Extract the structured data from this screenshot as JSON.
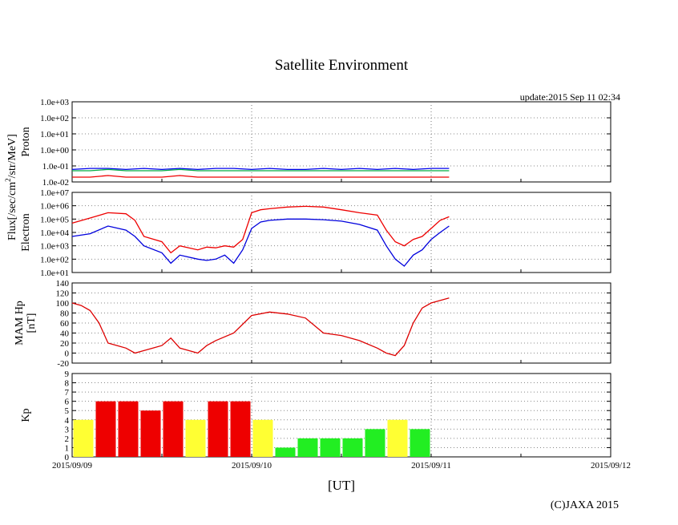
{
  "title": "Satellite Environment",
  "update": "update:2015 Sep 11 02:34",
  "copyright": "(C)JAXA 2015",
  "xlabel": "[UT]",
  "flux_label": "Flux[/sec/cm",
  "flux_label_sup": "2",
  "flux_label_tail": "/str/MeV]",
  "chart_data": [
    {
      "type": "line",
      "name": "proton",
      "ylabel": "Proton",
      "yscale": "log",
      "ylim": [
        0.01,
        1000
      ],
      "ytick_labels": [
        "1.0e-02",
        "1.0e-01",
        "1.0e+00",
        "1.0e+01",
        "1.0e+02",
        "1.0e+03"
      ],
      "x": [
        0,
        0.1,
        0.2,
        0.3,
        0.4,
        0.5,
        0.6,
        0.7,
        0.8,
        0.9,
        1.0,
        1.1,
        1.2,
        1.3,
        1.4,
        1.5,
        1.6,
        1.7,
        1.8,
        1.9,
        2.0,
        2.1
      ],
      "series": [
        {
          "name": "blue",
          "color": "#0000ee",
          "values": [
            0.06,
            0.07,
            0.07,
            0.06,
            0.07,
            0.06,
            0.07,
            0.06,
            0.07,
            0.07,
            0.06,
            0.07,
            0.06,
            0.06,
            0.07,
            0.06,
            0.07,
            0.06,
            0.07,
            0.06,
            0.07,
            0.07
          ]
        },
        {
          "name": "green",
          "color": "#00aa44",
          "values": [
            0.05,
            0.05,
            0.06,
            0.05,
            0.05,
            0.05,
            0.06,
            0.05,
            0.05,
            0.05,
            0.05,
            0.05,
            0.05,
            0.05,
            0.05,
            0.05,
            0.05,
            0.05,
            0.05,
            0.05,
            0.05,
            0.05
          ]
        },
        {
          "name": "red",
          "color": "#ee0000",
          "values": [
            0.02,
            0.02,
            0.025,
            0.02,
            0.02,
            0.02,
            0.025,
            0.02,
            0.02,
            0.02,
            0.02,
            0.02,
            0.02,
            0.02,
            0.02,
            0.02,
            0.02,
            0.02,
            0.02,
            0.02,
            0.02,
            0.02
          ]
        }
      ]
    },
    {
      "type": "line",
      "name": "electron",
      "ylabel": "Electron",
      "yscale": "log",
      "ylim": [
        10,
        10000000
      ],
      "ytick_labels": [
        "1.0e+01",
        "1.0e+02",
        "1.0e+03",
        "1.0e+04",
        "1.0e+05",
        "1.0e+06",
        "1.0e+07"
      ],
      "x": [
        0,
        0.1,
        0.2,
        0.3,
        0.35,
        0.4,
        0.5,
        0.55,
        0.6,
        0.7,
        0.75,
        0.8,
        0.85,
        0.9,
        0.95,
        1.0,
        1.05,
        1.1,
        1.2,
        1.3,
        1.4,
        1.5,
        1.6,
        1.7,
        1.75,
        1.8,
        1.85,
        1.9,
        1.95,
        2.0,
        2.05,
        2.1
      ],
      "series": [
        {
          "name": "red",
          "color": "#ee0000",
          "values": [
            50000,
            120000,
            300000,
            250000,
            80000,
            5000,
            2000,
            300,
            1000,
            500,
            800,
            700,
            1000,
            800,
            3000,
            300000,
            500000,
            600000,
            800000,
            900000,
            800000,
            500000,
            300000,
            200000,
            15000,
            2000,
            1000,
            3000,
            5000,
            20000,
            80000,
            150000
          ]
        },
        {
          "name": "blue",
          "color": "#0000dd",
          "values": [
            5000,
            8000,
            30000,
            15000,
            5000,
            1000,
            300,
            50,
            200,
            100,
            80,
            100,
            200,
            50,
            500,
            20000,
            60000,
            80000,
            100000,
            100000,
            90000,
            70000,
            40000,
            15000,
            1000,
            100,
            30,
            200,
            500,
            3000,
            10000,
            30000
          ]
        }
      ]
    },
    {
      "type": "line",
      "name": "magnetometer",
      "ylabel": "MAM Hp [nT]",
      "ylabel_lines": [
        "MAM Hp",
        "[nT]"
      ],
      "yscale": "linear",
      "ylim": [
        -20,
        140
      ],
      "ytick_labels": [
        "-20",
        "0",
        "20",
        "40",
        "60",
        "80",
        "100",
        "120",
        "140"
      ],
      "x": [
        0,
        0.05,
        0.1,
        0.15,
        0.2,
        0.25,
        0.3,
        0.35,
        0.4,
        0.45,
        0.5,
        0.55,
        0.6,
        0.65,
        0.7,
        0.75,
        0.8,
        0.9,
        1.0,
        1.1,
        1.2,
        1.3,
        1.4,
        1.5,
        1.6,
        1.7,
        1.75,
        1.8,
        1.85,
        1.9,
        1.95,
        2.0,
        2.05,
        2.1
      ],
      "series": [
        {
          "name": "Hp",
          "color": "#dd0000",
          "values": [
            100,
            95,
            85,
            60,
            20,
            15,
            10,
            0,
            5,
            10,
            15,
            30,
            10,
            5,
            0,
            15,
            25,
            40,
            75,
            82,
            78,
            70,
            40,
            35,
            25,
            10,
            0,
            -5,
            15,
            60,
            90,
            100,
            105,
            110
          ]
        }
      ]
    },
    {
      "type": "bar",
      "name": "kp",
      "ylabel": "Kp",
      "ylim": [
        0,
        9
      ],
      "ytick_labels": [
        "0",
        "1",
        "2",
        "3",
        "4",
        "5",
        "6",
        "7",
        "8",
        "9"
      ],
      "bars": [
        {
          "x": 0.0625,
          "value": 4,
          "color": "#ffff33"
        },
        {
          "x": 0.1875,
          "value": 6,
          "color": "#ee0000"
        },
        {
          "x": 0.3125,
          "value": 6,
          "color": "#ee0000"
        },
        {
          "x": 0.4375,
          "value": 5,
          "color": "#ee0000"
        },
        {
          "x": 0.5625,
          "value": 6,
          "color": "#ee0000"
        },
        {
          "x": 0.6875,
          "value": 4,
          "color": "#ffff33"
        },
        {
          "x": 0.8125,
          "value": 6,
          "color": "#ee0000"
        },
        {
          "x": 0.9375,
          "value": 6,
          "color": "#ee0000"
        },
        {
          "x": 1.0625,
          "value": 4,
          "color": "#ffff33"
        },
        {
          "x": 1.1875,
          "value": 1,
          "color": "#22ee22"
        },
        {
          "x": 1.3125,
          "value": 2,
          "color": "#22ee22"
        },
        {
          "x": 1.4375,
          "value": 2,
          "color": "#22ee22"
        },
        {
          "x": 1.5625,
          "value": 2,
          "color": "#22ee22"
        },
        {
          "x": 1.6875,
          "value": 3,
          "color": "#22ee22"
        },
        {
          "x": 1.8125,
          "value": 4,
          "color": "#ffff33"
        },
        {
          "x": 1.9375,
          "value": 3,
          "color": "#22ee22"
        }
      ]
    }
  ],
  "x_axis": {
    "unit": "days since 2015/09/09",
    "xlim": [
      0,
      3
    ],
    "tick_labels": [
      "2015/09/09",
      "2015/09/10",
      "2015/09/11",
      "2015/09/12"
    ],
    "dotted_gridlines_at": [
      1,
      2
    ]
  }
}
